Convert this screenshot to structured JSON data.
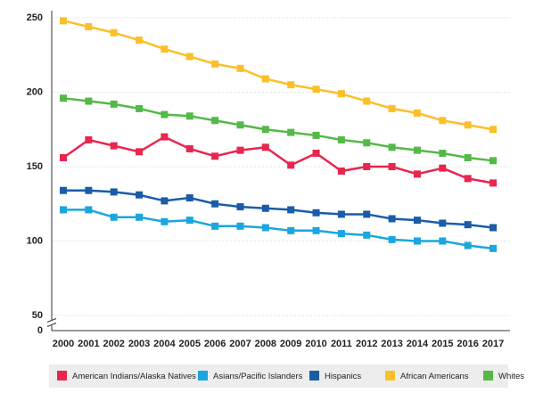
{
  "chart_data": {
    "type": "line",
    "x": [
      "2000",
      "2001",
      "2002",
      "2003",
      "2004",
      "2005",
      "2006",
      "2007",
      "2008",
      "2009",
      "2010",
      "2011",
      "2012",
      "2013",
      "2014",
      "2015",
      "2016",
      "2017"
    ],
    "series": [
      {
        "name": "American Indians/Alaska Natives",
        "color": "#e8264f",
        "values": [
          156,
          168,
          164,
          160,
          170,
          162,
          157,
          161,
          163,
          151,
          159,
          147,
          150,
          150,
          145,
          149,
          142,
          139
        ]
      },
      {
        "name": "Asians/Pacific Islanders",
        "color": "#1aa6de",
        "values": [
          121,
          121,
          116,
          116,
          113,
          114,
          110,
          110,
          109,
          107,
          107,
          105,
          104,
          101,
          100,
          100,
          97,
          95
        ]
      },
      {
        "name": "Hispanics",
        "color": "#1a5ca8",
        "values": [
          134,
          134,
          133,
          131,
          127,
          129,
          125,
          123,
          122,
          121,
          119,
          118,
          118,
          115,
          114,
          112,
          111,
          109
        ]
      },
      {
        "name": "African Americans",
        "color": "#fbbf2a",
        "values": [
          248,
          244,
          240,
          235,
          229,
          224,
          219,
          216,
          209,
          205,
          202,
          199,
          194,
          189,
          186,
          181,
          178,
          175
        ]
      },
      {
        "name": "Whites",
        "color": "#54b948",
        "values": [
          196,
          194,
          192,
          189,
          185,
          184,
          181,
          178,
          175,
          173,
          171,
          168,
          166,
          163,
          161,
          159,
          156,
          154
        ]
      }
    ],
    "ylim": [
      0,
      250
    ],
    "yticks": [
      0,
      50,
      100,
      150,
      200,
      250
    ],
    "axis_break": true,
    "grid": true
  }
}
